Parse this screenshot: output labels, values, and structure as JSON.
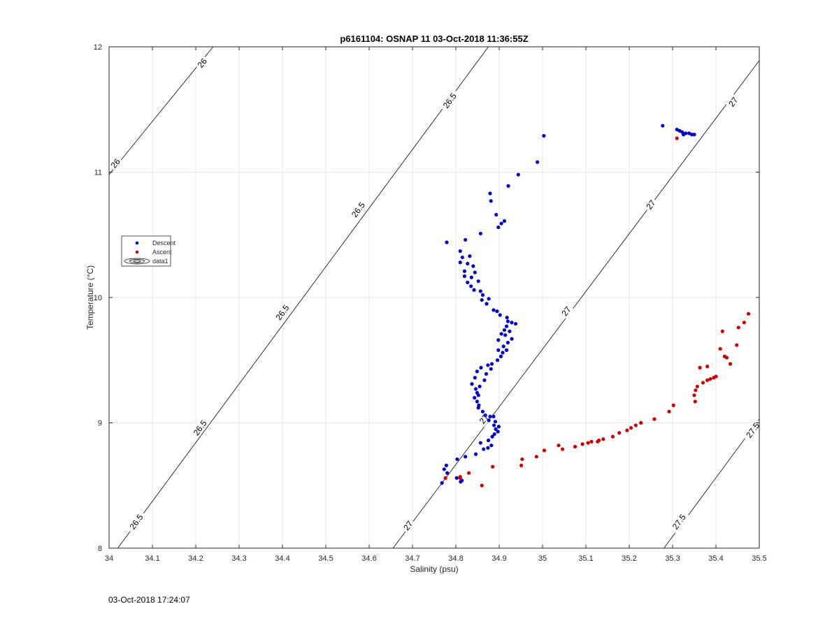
{
  "chart_data": {
    "type": "scatter",
    "title": "p6161104: OSNAP 11 03-Oct-2018 11:36:55Z",
    "xlabel": "Salinity (psu)",
    "ylabel": "Temperature (°C)",
    "xlim": [
      34,
      35.5
    ],
    "ylim": [
      8,
      12
    ],
    "xticks": [
      "34",
      "34.1",
      "34.2",
      "34.3",
      "34.4",
      "34.5",
      "34.6",
      "34.7",
      "34.8",
      "34.9",
      "35",
      "35.1",
      "35.2",
      "35.3",
      "35.4",
      "35.5"
    ],
    "yticks": [
      "8",
      "9",
      "10",
      "11",
      "12"
    ],
    "grid": true,
    "legend": {
      "placement": "left",
      "entries": [
        {
          "label": "Descent",
          "color": "#0000cc",
          "marker": "dot"
        },
        {
          "label": "Ascent",
          "color": "#cc0000",
          "marker": "dot"
        },
        {
          "label": "data1",
          "color": "#000000",
          "marker": "contour"
        }
      ]
    },
    "contours": [
      {
        "level": "26",
        "line": [
          [
            34.0,
            10.98
          ],
          [
            34.24,
            12.0
          ]
        ],
        "labels": [
          {
            "text": "26",
            "at": [
              34.015,
              11.07
            ]
          },
          {
            "text": "26",
            "at": [
              34.215,
              11.87
            ]
          }
        ]
      },
      {
        "level": "26.5",
        "line": [
          [
            34.02,
            8.0
          ],
          [
            34.875,
            12.0
          ]
        ],
        "labels": [
          {
            "text": "26.5",
            "at": [
              34.063,
              8.21
            ]
          },
          {
            "text": "26.5",
            "at": [
              34.21,
              8.96
            ]
          },
          {
            "text": "26.5",
            "at": [
              34.4,
              9.88
            ]
          },
          {
            "text": "26.5",
            "at": [
              34.575,
              10.7
            ]
          },
          {
            "text": "26.5",
            "at": [
              34.786,
              11.57
            ]
          }
        ]
      },
      {
        "level": "27",
        "line": [
          [
            34.655,
            8.0
          ],
          [
            35.5,
            11.89
          ]
        ],
        "labels": [
          {
            "text": "27",
            "at": [
              34.69,
              8.18
            ]
          },
          {
            "text": "27",
            "at": [
              34.865,
              9.03
            ]
          },
          {
            "text": "27",
            "at": [
              35.055,
              9.89
            ]
          },
          {
            "text": "27",
            "at": [
              35.25,
              10.74
            ]
          },
          {
            "text": "27",
            "at": [
              35.44,
              11.56
            ]
          }
        ]
      },
      {
        "level": "27.5",
        "line": [
          [
            35.28,
            8.0
          ],
          [
            35.5,
            9.03
          ]
        ],
        "labels": [
          {
            "text": "27.5",
            "at": [
              35.315,
              8.21
            ]
          },
          {
            "text": "27.5",
            "at": [
              35.485,
              8.94
            ]
          }
        ]
      }
    ],
    "series": [
      {
        "name": "Descent",
        "color": "#0000cc",
        "points": [
          [
            35.003,
            11.29
          ],
          [
            34.988,
            11.08
          ],
          [
            34.944,
            10.98
          ],
          [
            34.921,
            10.89
          ],
          [
            34.879,
            10.83
          ],
          [
            34.881,
            10.77
          ],
          [
            34.893,
            10.66
          ],
          [
            34.912,
            10.61
          ],
          [
            34.905,
            10.59
          ],
          [
            34.898,
            10.56
          ],
          [
            34.857,
            10.51
          ],
          [
            34.822,
            10.46
          ],
          [
            34.779,
            10.44
          ],
          [
            34.81,
            10.37
          ],
          [
            34.815,
            10.32
          ],
          [
            34.832,
            10.33
          ],
          [
            34.81,
            10.28
          ],
          [
            34.827,
            10.27
          ],
          [
            34.84,
            10.25
          ],
          [
            34.82,
            10.21
          ],
          [
            34.844,
            10.2
          ],
          [
            34.82,
            10.17
          ],
          [
            34.836,
            10.16
          ],
          [
            34.852,
            10.13
          ],
          [
            34.827,
            10.12
          ],
          [
            34.835,
            10.09
          ],
          [
            34.842,
            10.06
          ],
          [
            34.857,
            10.05
          ],
          [
            34.862,
            10.02
          ],
          [
            34.86,
            9.98
          ],
          [
            34.876,
            9.99
          ],
          [
            34.871,
            9.95
          ],
          [
            34.887,
            9.9
          ],
          [
            34.895,
            9.89
          ],
          [
            34.902,
            9.86
          ],
          [
            34.918,
            9.84
          ],
          [
            34.92,
            9.81
          ],
          [
            34.929,
            9.8
          ],
          [
            34.938,
            9.79
          ],
          [
            34.917,
            9.77
          ],
          [
            34.912,
            9.74
          ],
          [
            34.924,
            9.73
          ],
          [
            34.905,
            9.71
          ],
          [
            34.914,
            9.7
          ],
          [
            34.929,
            9.67
          ],
          [
            34.898,
            9.66
          ],
          [
            34.92,
            9.64
          ],
          [
            34.91,
            9.61
          ],
          [
            34.898,
            9.58
          ],
          [
            34.917,
            9.58
          ],
          [
            34.908,
            9.56
          ],
          [
            34.904,
            9.53
          ],
          [
            34.896,
            9.5
          ],
          [
            34.883,
            9.47
          ],
          [
            34.874,
            9.46
          ],
          [
            34.858,
            9.44
          ],
          [
            34.881,
            9.43
          ],
          [
            34.849,
            9.41
          ],
          [
            34.87,
            9.39
          ],
          [
            34.844,
            9.36
          ],
          [
            34.866,
            9.34
          ],
          [
            34.837,
            9.31
          ],
          [
            34.855,
            9.29
          ],
          [
            34.846,
            9.27
          ],
          [
            34.849,
            9.24
          ],
          [
            34.852,
            9.22
          ],
          [
            34.843,
            9.2
          ],
          [
            34.849,
            9.17
          ],
          [
            34.853,
            9.14
          ],
          [
            34.852,
            9.12
          ],
          [
            34.862,
            9.09
          ],
          [
            34.868,
            9.06
          ],
          [
            34.879,
            9.05
          ],
          [
            34.887,
            9.05
          ],
          [
            34.876,
            9.02
          ],
          [
            34.891,
            9.01
          ],
          [
            34.888,
            8.98
          ],
          [
            34.899,
            8.97
          ],
          [
            34.892,
            8.95
          ],
          [
            34.897,
            8.93
          ],
          [
            34.889,
            8.91
          ],
          [
            34.884,
            8.89
          ],
          [
            34.875,
            8.86
          ],
          [
            34.857,
            8.84
          ],
          [
            34.882,
            8.82
          ],
          [
            34.874,
            8.8
          ],
          [
            34.864,
            8.79
          ],
          [
            34.846,
            8.75
          ],
          [
            34.822,
            8.73
          ],
          [
            34.803,
            8.71
          ],
          [
            34.778,
            8.66
          ],
          [
            34.773,
            8.63
          ],
          [
            34.78,
            8.6
          ],
          [
            34.802,
            8.56
          ],
          [
            34.811,
            8.53
          ],
          [
            34.768,
            8.52
          ],
          [
            34.814,
            8.54
          ],
          [
            35.277,
            11.37
          ],
          [
            35.31,
            11.34
          ],
          [
            35.316,
            11.33
          ],
          [
            35.322,
            11.32
          ],
          [
            35.33,
            11.31
          ],
          [
            35.338,
            11.31
          ],
          [
            35.344,
            11.3
          ],
          [
            35.35,
            11.3
          ],
          [
            35.325,
            11.3
          ]
        ]
      },
      {
        "name": "Ascent",
        "color": "#cc0000",
        "points": [
          [
            35.31,
            11.27
          ],
          [
            35.475,
            9.87
          ],
          [
            35.465,
            9.8
          ],
          [
            35.452,
            9.76
          ],
          [
            35.415,
            9.73
          ],
          [
            35.448,
            9.62
          ],
          [
            35.41,
            9.59
          ],
          [
            35.42,
            9.53
          ],
          [
            35.425,
            9.52
          ],
          [
            35.433,
            9.47
          ],
          [
            35.38,
            9.45
          ],
          [
            35.363,
            9.44
          ],
          [
            35.4,
            9.37
          ],
          [
            35.395,
            9.36
          ],
          [
            35.387,
            9.35
          ],
          [
            35.38,
            9.34
          ],
          [
            35.37,
            9.32
          ],
          [
            35.357,
            9.29
          ],
          [
            35.353,
            9.26
          ],
          [
            35.35,
            9.22
          ],
          [
            35.352,
            9.17
          ],
          [
            35.302,
            9.14
          ],
          [
            35.292,
            9.09
          ],
          [
            35.258,
            9.03
          ],
          [
            35.227,
            9.0
          ],
          [
            35.215,
            8.98
          ],
          [
            35.204,
            8.96
          ],
          [
            35.195,
            8.94
          ],
          [
            35.177,
            8.92
          ],
          [
            35.162,
            8.89
          ],
          [
            35.14,
            8.87
          ],
          [
            35.13,
            8.86
          ],
          [
            35.127,
            8.85
          ],
          [
            35.113,
            8.85
          ],
          [
            35.105,
            8.84
          ],
          [
            35.092,
            8.83
          ],
          [
            35.075,
            8.81
          ],
          [
            35.046,
            8.79
          ],
          [
            35.037,
            8.82
          ],
          [
            35.004,
            8.78
          ],
          [
            34.986,
            8.73
          ],
          [
            34.953,
            8.71
          ],
          [
            34.951,
            8.66
          ],
          [
            34.885,
            8.65
          ],
          [
            34.83,
            8.6
          ],
          [
            34.81,
            8.57
          ],
          [
            34.81,
            8.56
          ],
          [
            34.776,
            8.56
          ],
          [
            34.86,
            8.5
          ]
        ]
      }
    ]
  },
  "footer": {
    "timestamp": "03-Oct-2018 17:24:07"
  }
}
